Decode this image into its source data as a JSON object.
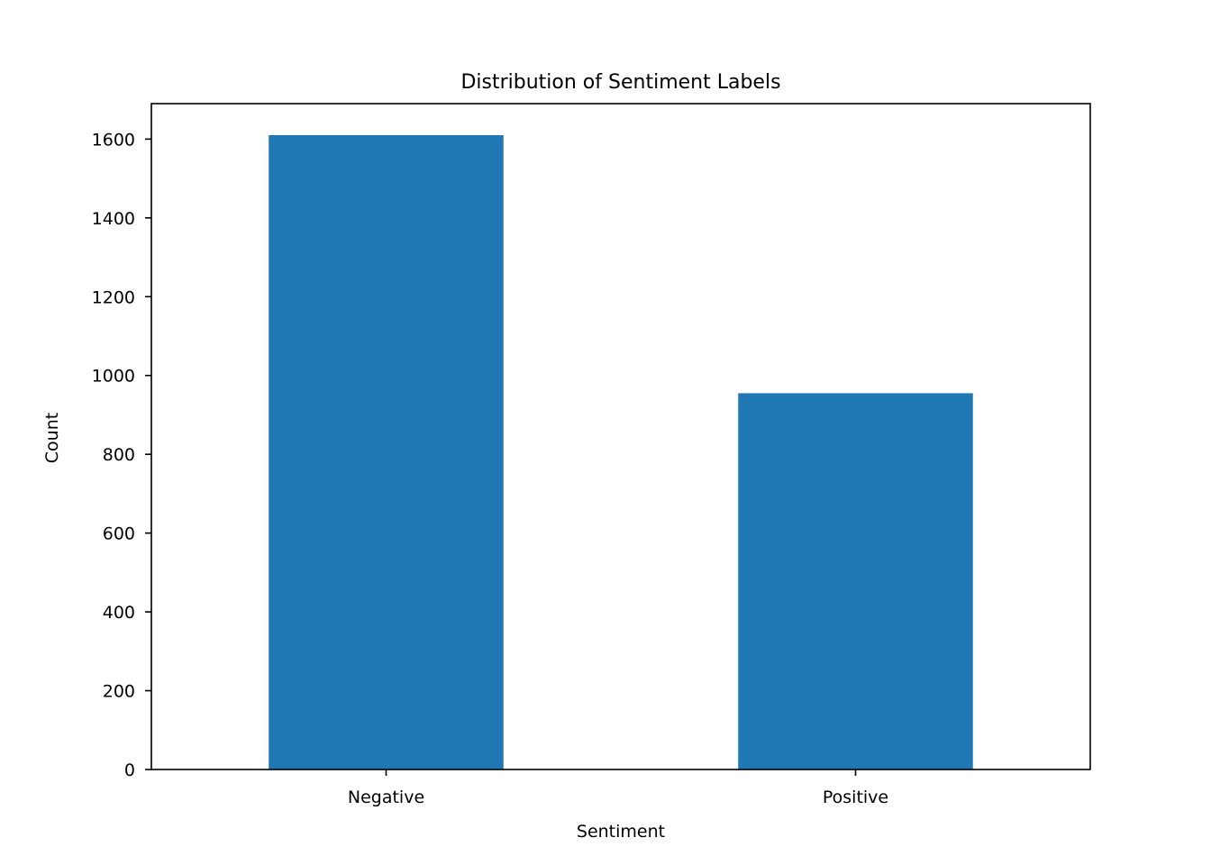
{
  "chart_data": {
    "type": "bar",
    "title": "Distribution of Sentiment Labels",
    "xlabel": "Sentiment",
    "ylabel": "Count",
    "categories": [
      "Negative",
      "Positive"
    ],
    "values": [
      1610,
      955
    ],
    "ylim": [
      0,
      1690
    ],
    "yticks": [
      0,
      200,
      400,
      600,
      800,
      1000,
      1200,
      1400,
      1600
    ],
    "bar_color": "#1f77b4",
    "grid": false,
    "legend": "none"
  }
}
